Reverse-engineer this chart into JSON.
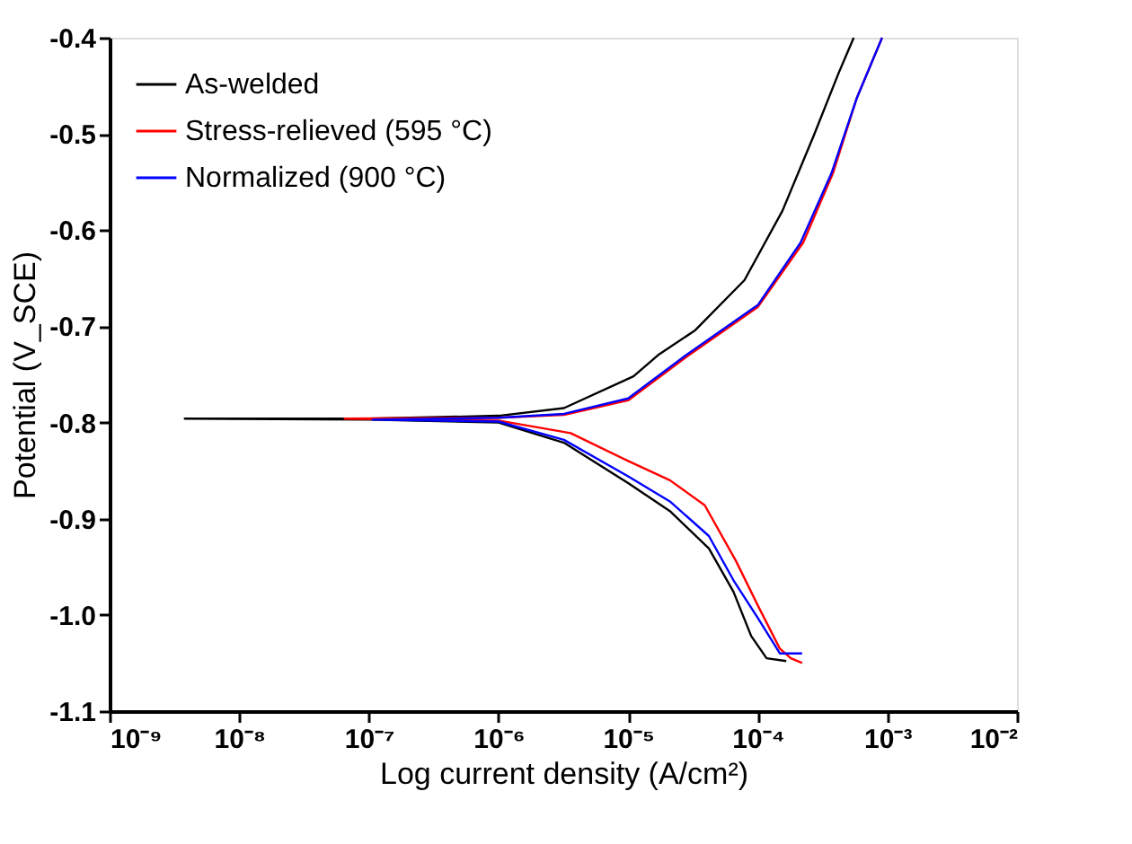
{
  "chart_data": {
    "type": "line",
    "xlabel": "Log current density (A/cm²)",
    "ylabel": "Potential (V_SCE)",
    "log": "x",
    "xlim": [
      1e-09,
      0.01
    ],
    "ylim": [
      -1.1,
      -0.4
    ],
    "xticks": [
      {
        "value": 1e-09,
        "label": "10⁻⁹"
      },
      {
        "value": 1e-08,
        "label": "10⁻⁸"
      },
      {
        "value": 1e-07,
        "label": "10⁻⁷"
      },
      {
        "value": 1e-06,
        "label": "10⁻⁶"
      },
      {
        "value": 1e-05,
        "label": "10⁻⁵"
      },
      {
        "value": 0.0001,
        "label": "10⁻⁴"
      },
      {
        "value": 0.001,
        "label": "10⁻³"
      },
      {
        "value": 0.01,
        "label": "10⁻²"
      }
    ],
    "yticks": [
      {
        "value": -1.1,
        "label": "-1.1"
      },
      {
        "value": -1.0,
        "label": "-1.0"
      },
      {
        "value": -0.9,
        "label": "-0.9"
      },
      {
        "value": -0.8,
        "label": "-0.8"
      },
      {
        "value": -0.7,
        "label": "-0.7"
      },
      {
        "value": -0.6,
        "label": "-0.6"
      },
      {
        "value": -0.5,
        "label": "-0.5"
      },
      {
        "value": -0.4,
        "label": "-0.4"
      }
    ],
    "grid": false,
    "legend": "top left",
    "marker": "none",
    "line_style": "solid",
    "series": [
      {
        "name": "As-welded",
        "color": "#000000",
        "x": [
          0.000166,
          0.000117,
          8.9e-05,
          6.5e-05,
          4.2e-05,
          2.1e-05,
          1e-05,
          3.2e-06,
          1e-06,
          1e-07,
          3.8e-09,
          1e-07,
          1e-06,
          3.2e-06,
          1.1e-05,
          1.7e-05,
          3.3e-05,
          7.9e-05,
          0.000155,
          0.00027,
          0.00042,
          0.00055
        ],
        "values": [
          -1.048,
          -1.045,
          -1.022,
          -0.976,
          -0.931,
          -0.892,
          -0.863,
          -0.821,
          -0.8,
          -0.797,
          -0.796,
          -0.796,
          -0.793,
          -0.785,
          -0.752,
          -0.73,
          -0.704,
          -0.652,
          -0.58,
          -0.502,
          -0.437,
          -0.4
        ]
      },
      {
        "name": "Stress-relieved (595 °C)",
        "color": "#ff0000",
        "x": [
          0.00022,
          0.00018,
          0.000148,
          0.0001,
          6.8e-05,
          3.9e-05,
          2.1e-05,
          1e-05,
          3.6e-06,
          1e-06,
          6.5e-08,
          1e-06,
          3.2e-06,
          1e-05,
          2.8e-05,
          0.0001,
          0.000224,
          0.00038,
          0.00058,
          0.00091
        ],
        "values": [
          -1.05,
          -1.045,
          -1.035,
          -0.99,
          -0.944,
          -0.886,
          -0.86,
          -0.84,
          -0.811,
          -0.798,
          -0.796,
          -0.795,
          -0.792,
          -0.777,
          -0.732,
          -0.68,
          -0.613,
          -0.541,
          -0.463,
          -0.4
        ]
      },
      {
        "name": "Normalized (900 °C)",
        "color": "#0000ff",
        "x": [
          0.00022,
          0.000148,
          0.0001,
          6.5e-05,
          4.2e-05,
          2.1e-05,
          1e-05,
          3.2e-06,
          1e-06,
          1.07e-07,
          1e-06,
          3.2e-06,
          1e-05,
          2.8e-05,
          0.0001,
          0.000214,
          0.00037,
          0.00058,
          0.00091
        ],
        "values": [
          -1.04,
          -1.04,
          -1.003,
          -0.964,
          -0.918,
          -0.882,
          -0.856,
          -0.818,
          -0.799,
          -0.797,
          -0.795,
          -0.791,
          -0.775,
          -0.73,
          -0.678,
          -0.613,
          -0.541,
          -0.463,
          -0.4
        ]
      }
    ]
  }
}
